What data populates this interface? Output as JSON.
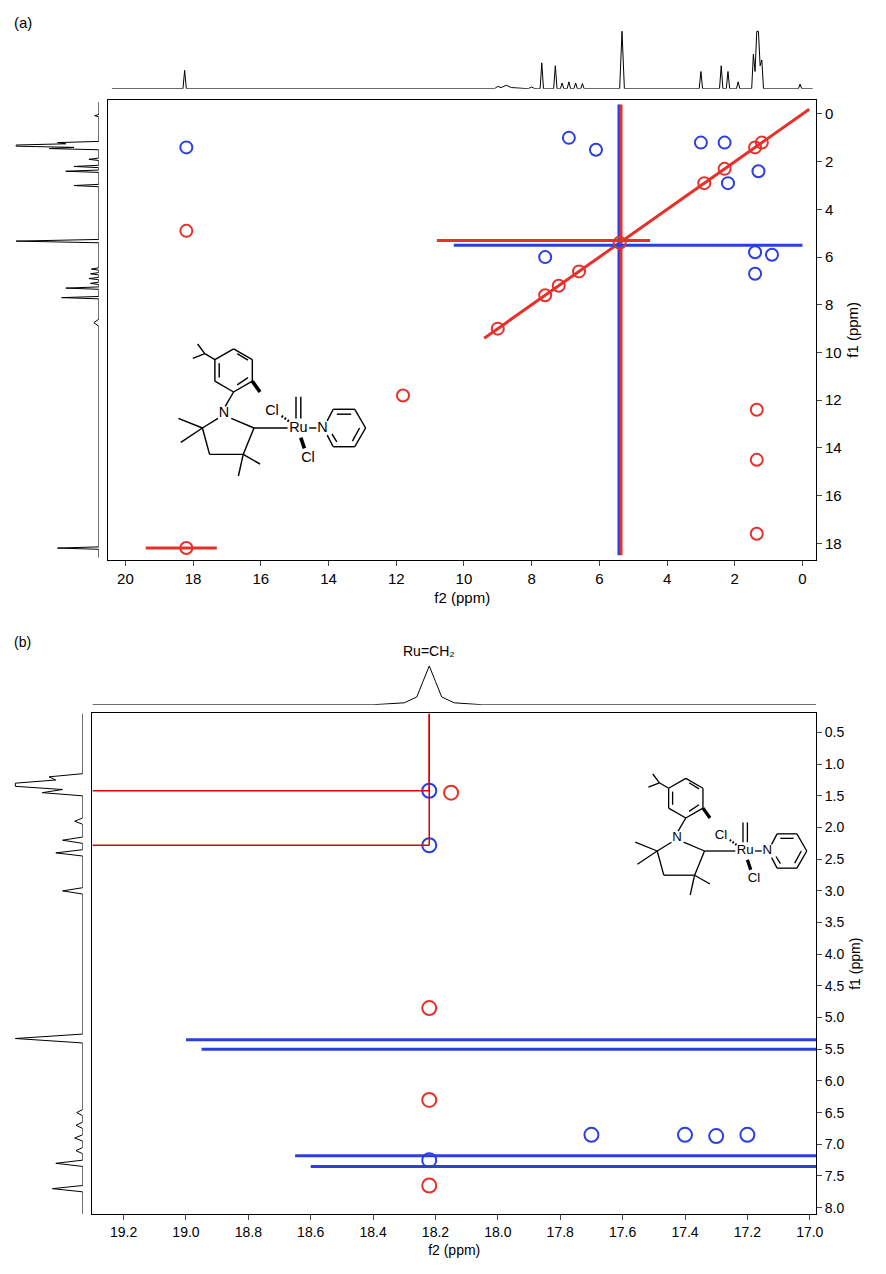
{
  "chart_data": [
    {
      "type": "nmr_2d",
      "label": "(a)",
      "x_label": "f2 (ppm)",
      "y_label": "f1 (ppm)",
      "grid": false,
      "xlim": [
        20.5,
        -0.4
      ],
      "xticks": [
        20,
        18,
        16,
        14,
        12,
        10,
        8,
        6,
        4,
        2,
        0
      ],
      "ylim": [
        18.7,
        -0.6
      ],
      "yticks": [
        0,
        2,
        4,
        6,
        8,
        10,
        12,
        14,
        16,
        18
      ],
      "projection_lim": [
        0,
        1.05
      ],
      "f2_projection": {
        "x": [
          20.4,
          18.3,
          18.25,
          18.2,
          9.1,
          9.0,
          8.9,
          8.75,
          8.6,
          8.1,
          8.0,
          7.9,
          7.75,
          7.7,
          7.65,
          7.35,
          7.3,
          7.25,
          7.15,
          7.1,
          7.05,
          6.95,
          6.9,
          6.85,
          6.75,
          6.7,
          6.65,
          6.55,
          6.5,
          6.45,
          5.4,
          5.33,
          5.26,
          3.05,
          3.0,
          2.95,
          2.45,
          2.4,
          2.35,
          2.25,
          2.2,
          2.15,
          1.95,
          1.9,
          1.85,
          1.5,
          1.45,
          1.4,
          1.35,
          1.3,
          1.25,
          1.2,
          1.15,
          0.12,
          0.07,
          0.02,
          -0.3
        ],
        "values": [
          0,
          0,
          0.32,
          0,
          0,
          0.04,
          0.02,
          0.06,
          0.02,
          0,
          0.03,
          0,
          0,
          0.45,
          0,
          0,
          0.4,
          0,
          0,
          0.1,
          0,
          0,
          0.12,
          0,
          0,
          0.1,
          0,
          0,
          0.09,
          0,
          0,
          1.0,
          0,
          0,
          0.3,
          0,
          0,
          0.4,
          0,
          0,
          0.3,
          0,
          0,
          0.12,
          0,
          0,
          0.6,
          0.3,
          1.0,
          1.0,
          0.4,
          0.5,
          0,
          0,
          0.08,
          0,
          0
        ]
      },
      "f1_projection": {
        "y": [
          -0.5,
          0.02,
          0.07,
          0.12,
          1.15,
          1.2,
          1.25,
          1.3,
          1.35,
          1.4,
          1.45,
          1.5,
          1.85,
          1.9,
          1.95,
          2.15,
          2.2,
          2.25,
          2.35,
          2.4,
          2.45,
          2.95,
          3.0,
          3.05,
          5.26,
          5.33,
          5.4,
          6.45,
          6.5,
          6.55,
          6.65,
          6.7,
          6.75,
          6.85,
          6.9,
          6.95,
          7.05,
          7.1,
          7.15,
          7.25,
          7.3,
          7.35,
          7.65,
          7.7,
          7.75,
          8.6,
          8.75,
          8.9,
          18.15,
          18.2,
          18.25,
          18.6
        ],
        "values": [
          0,
          0,
          0.05,
          0,
          0,
          0.5,
          0.4,
          1.0,
          1.0,
          0.3,
          0.6,
          0,
          0,
          0.12,
          0,
          0,
          0.3,
          0,
          0,
          0.4,
          0,
          0,
          0.3,
          0,
          0,
          1.0,
          0,
          0,
          0.09,
          0,
          0,
          0.1,
          0,
          0,
          0.12,
          0,
          0,
          0.1,
          0,
          0,
          0.4,
          0,
          0,
          0.45,
          0,
          0,
          0.06,
          0,
          0,
          0.5,
          0,
          0
        ]
      },
      "series": [
        {
          "type": "line",
          "color": "#e8302a",
          "x": [
            9.4,
            -0.2
          ],
          "y": [
            9.4,
            -0.2
          ]
        },
        {
          "type": "line",
          "color": "#2b3fe0",
          "x": [
            5.42,
            5.42
          ],
          "y": [
            -0.4,
            18.5
          ]
        },
        {
          "type": "line",
          "color": "#e8302a",
          "x": [
            5.36,
            5.36
          ],
          "y": [
            -0.4,
            18.5
          ]
        },
        {
          "type": "line",
          "color": "#e8302a",
          "x": [
            10.8,
            4.5
          ],
          "y": [
            5.3,
            5.3
          ]
        },
        {
          "type": "line",
          "color": "#2b3fe0",
          "x": [
            10.3,
            0.0
          ],
          "y": [
            5.5,
            5.5
          ]
        },
        {
          "type": "line",
          "color": "#e8302a",
          "x": [
            19.4,
            17.3
          ],
          "y": [
            18.2,
            18.2
          ]
        },
        {
          "type": "scatter",
          "marker": "circle-open",
          "color": "#e8302a",
          "x": [
            18.2,
            18.2,
            11.8,
            9.0,
            7.6,
            7.2,
            6.6,
            5.4,
            2.9,
            2.3,
            1.4,
            1.2,
            1.35,
            1.35,
            1.35
          ],
          "y": [
            18.2,
            4.9,
            11.8,
            9.0,
            7.6,
            7.2,
            6.6,
            5.4,
            2.9,
            2.3,
            1.4,
            1.2,
            12.4,
            14.5,
            17.6
          ]
        },
        {
          "type": "scatter",
          "marker": "circle-open",
          "color": "#2b3fe0",
          "x": [
            18.2,
            6.1,
            6.9,
            3.0,
            2.2,
            1.4,
            0.9,
            1.4,
            7.6,
            2.3,
            1.3
          ],
          "y": [
            1.4,
            1.5,
            1.0,
            1.2,
            2.9,
            5.8,
            5.9,
            6.7,
            6.0,
            1.2,
            2.4
          ]
        }
      ],
      "structure": {
        "amine_N": "N",
        "upper_Cl": "Cl",
        "metal": "Ru",
        "pyridine_N": "N",
        "lower_Cl": "Cl"
      }
    },
    {
      "type": "nmr_2d",
      "label": "(b)",
      "x_label": "f2 (ppm)",
      "y_label": "f1 (ppm)",
      "grid": false,
      "xlim": [
        19.3,
        16.98
      ],
      "xticks": [
        19.2,
        {
          "value": 19,
          "label": "19.0"
        },
        18.8,
        18.6,
        18.4,
        18.2,
        {
          "value": 18,
          "label": "18.0"
        },
        17.8,
        17.6,
        17.4,
        17.2,
        {
          "value": 17,
          "label": "17.0"
        }
      ],
      "ylim": [
        8.1,
        0.2
      ],
      "yticks": [
        0.5,
        {
          "value": 1,
          "label": "1.0"
        },
        1.5,
        {
          "value": 2,
          "label": "2.0"
        },
        2.5,
        {
          "value": 3,
          "label": "3.0"
        },
        3.5,
        {
          "value": 4,
          "label": "4.0"
        },
        4.5,
        {
          "value": 5,
          "label": "5.0"
        },
        5.5,
        {
          "value": 6,
          "label": "6.0"
        },
        6.5,
        {
          "value": 7,
          "label": "7.0"
        },
        7.5,
        {
          "value": 8,
          "label": "8.0"
        }
      ],
      "projection_lim": [
        0,
        1.05
      ],
      "f2_projection": {
        "x": [
          19.3,
          18.4,
          18.3,
          18.26,
          18.24,
          18.22,
          18.2,
          18.18,
          18.14,
          18.05,
          16.98
        ],
        "values": [
          0,
          0,
          0.05,
          0.2,
          0.6,
          1.0,
          0.6,
          0.2,
          0.05,
          0,
          0
        ]
      },
      "f1_projection": {
        "y": [
          0.2,
          1.15,
          1.2,
          1.25,
          1.3,
          1.35,
          1.4,
          1.45,
          1.5,
          1.85,
          1.9,
          1.95,
          2.15,
          2.2,
          2.25,
          2.35,
          2.4,
          2.45,
          2.95,
          3.0,
          3.05,
          5.26,
          5.33,
          5.4,
          6.45,
          6.5,
          6.55,
          6.65,
          6.7,
          6.75,
          6.85,
          6.9,
          6.95,
          7.05,
          7.1,
          7.15,
          7.25,
          7.3,
          7.35,
          7.65,
          7.7,
          7.75,
          8.1
        ],
        "values": [
          0,
          0,
          0.5,
          0.4,
          1.0,
          1.0,
          0.3,
          0.6,
          0,
          0,
          0.12,
          0,
          0,
          0.3,
          0,
          0,
          0.4,
          0,
          0,
          0.3,
          0,
          0,
          1.0,
          0,
          0,
          0.09,
          0,
          0,
          0.1,
          0,
          0,
          0.12,
          0,
          0,
          0.1,
          0,
          0,
          0.4,
          0,
          0,
          0.45,
          0,
          0
        ]
      },
      "series": [
        {
          "type": "line",
          "color": "#2b3fe0",
          "x": [
            19.0,
            16.98
          ],
          "y": [
            5.35,
            5.35
          ]
        },
        {
          "type": "line",
          "color": "#2b3fe0",
          "x": [
            18.95,
            16.98
          ],
          "y": [
            5.5,
            5.5
          ]
        },
        {
          "type": "line",
          "color": "#2b3fe0",
          "x": [
            18.65,
            16.98
          ],
          "y": [
            7.18,
            7.18
          ]
        },
        {
          "type": "line",
          "color": "#2b3fe0",
          "x": [
            18.6,
            16.98
          ],
          "y": [
            7.35,
            7.35
          ]
        },
        {
          "type": "scatter",
          "marker": "circle-open",
          "color": "#2b3fe0",
          "x": [
            18.22,
            18.22,
            18.22,
            17.7,
            17.4,
            17.3,
            17.2
          ],
          "y": [
            1.42,
            2.28,
            7.25,
            6.85,
            6.85,
            6.87,
            6.85
          ]
        },
        {
          "type": "scatter",
          "marker": "circle-open",
          "color": "#e8302a",
          "x": [
            18.15,
            18.22,
            18.22,
            18.22
          ],
          "y": [
            1.45,
            4.85,
            6.3,
            7.65
          ]
        }
      ],
      "guides": {
        "color": "#e00000",
        "points": [
          {
            "x": 18.22,
            "y": 1.42
          },
          {
            "x": 18.22,
            "y": 2.28
          }
        ]
      },
      "peak_label": {
        "text": "Ru=CH₂",
        "x": 18.22
      },
      "structure": {
        "amine_N": "N",
        "upper_Cl": "Cl",
        "metal": "Ru",
        "pyridine_N": "N",
        "lower_Cl": "Cl"
      }
    }
  ]
}
